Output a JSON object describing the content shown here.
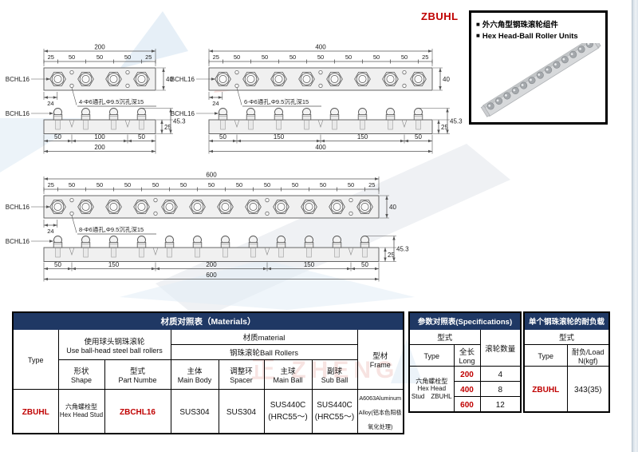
{
  "page_code": "ZBUHL",
  "legend": {
    "bullet": "■",
    "line_cn": "外六角型钢珠滚轮组件",
    "line_en": "Hex Head-Ball Roller Units"
  },
  "colors": {
    "navy": "#1F3864",
    "red": "#C00000"
  },
  "watermark_text": "正 ZHENG",
  "drawings": {
    "units": [
      {
        "label": "BCHL16",
        "length": 200,
        "rollers": 4,
        "hole_positions": [
          50,
          150
        ],
        "top": {
          "total": "200",
          "segments": [
            "25",
            "50",
            "50",
            "50",
            "25"
          ],
          "height": "40",
          "edge": "24",
          "note": "4-Φ6通孔,Φ9.5沉孔深15"
        },
        "side": {
          "segments": [
            "50",
            "100",
            "50"
          ],
          "total": "200",
          "height_total": "45.3",
          "height_bar": "25"
        }
      },
      {
        "label": "BCHL16",
        "length": 400,
        "rollers": 8,
        "hole_positions": [
          50,
          200,
          350
        ],
        "top": {
          "total": "400",
          "segments": [
            "25",
            "50",
            "50",
            "50",
            "50",
            "50",
            "50",
            "50",
            "25"
          ],
          "height": "40",
          "edge": "24",
          "note": "6-Φ6通孔,Φ9.5沉孔深15"
        },
        "side": {
          "segments": [
            "50",
            "150",
            "150",
            "50"
          ],
          "total": "400",
          "height_total": "45.3",
          "height_bar": "25"
        }
      },
      {
        "label": "BCHL16",
        "length": 600,
        "rollers": 12,
        "hole_positions": [
          50,
          200,
          400,
          550
        ],
        "top": {
          "total": "600",
          "segments": [
            "25",
            "50",
            "50",
            "50",
            "50",
            "50",
            "50",
            "50",
            "50",
            "50",
            "50",
            "50",
            "25"
          ],
          "height": "40",
          "edge": "24",
          "note": "8-Φ6通孔,Φ9.5沉孔深15"
        },
        "side": {
          "segments": [
            "50",
            "150",
            "200",
            "150",
            "50"
          ],
          "total": "600",
          "height_total": "45.3",
          "height_bar": "25"
        }
      }
    ]
  },
  "materials_table": {
    "title": "材质对照表（Materials）",
    "headers": {
      "type": "Type",
      "use_cn": "使用球头钢珠滚轮",
      "use_en": "Use ball-head steel ball rollers",
      "material": "材质material",
      "ball_rollers": "钢珠滚轮Ball Rollers",
      "frame_cn": "型材",
      "frame_en": "Frame",
      "shape_cn": "形状",
      "shape_en": "Shape",
      "part_cn": "型式",
      "part_en": "Part Numbe",
      "body_cn": "主体",
      "body_en": "Main Body",
      "spacer_cn": "调整环",
      "spacer_en": "Spacer",
      "mainball_cn": "主球",
      "mainball_en": "Main Ball",
      "subball_cn": "副球",
      "subball_en": "Sub Ball"
    },
    "row": {
      "type": "ZBUHL",
      "shape_cn": "六角螺栓型",
      "shape_en": "Hex Head Stud",
      "part": "ZBCHL16",
      "body": "SUS304",
      "spacer": "SUS304",
      "mainball_1": "SUS440C",
      "mainball_2": "(HRC55～)",
      "subball_1": "SUS440C",
      "subball_2": "(HRC55～)",
      "frame": "A6063Aluminum Alloy(铝本色阳极氧化处理)"
    }
  },
  "spec_table": {
    "title": "参数对照表(Specifications)",
    "type_header": "型式",
    "type_label": "Type",
    "long_cn": "全长",
    "long_en": "Long",
    "count_header": "滚轮数量",
    "type_value_1": "六角螺栓型",
    "type_value_2": "Hex Head",
    "type_value_3": "Stud　ZBUHL",
    "rows": [
      {
        "long": "200",
        "count": "4"
      },
      {
        "long": "400",
        "count": "8"
      },
      {
        "long": "600",
        "count": "12"
      }
    ]
  },
  "load_table": {
    "title": "单个钢珠滚轮的耐负载",
    "type_header": "型式",
    "type_label": "Type",
    "load_cn": "耐负/Load",
    "load_unit": "N(kgf)",
    "row": {
      "type": "ZBUHL",
      "load": "343(35)"
    }
  }
}
